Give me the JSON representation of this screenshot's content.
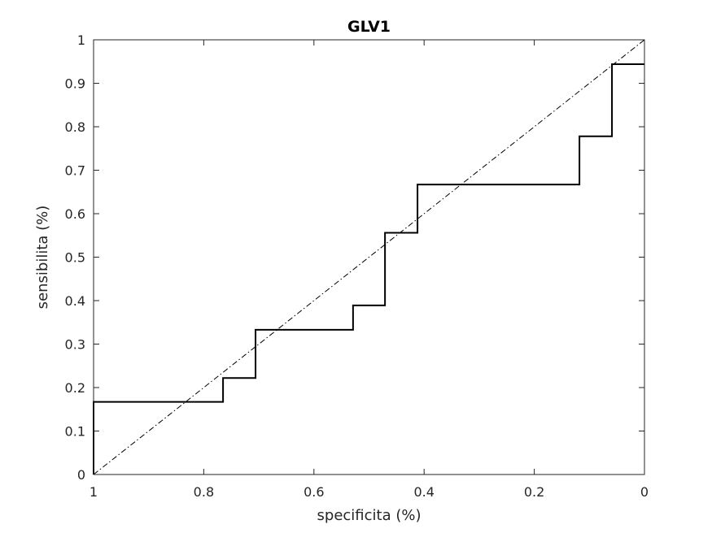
{
  "chart_data": {
    "type": "line",
    "title": "GLV1",
    "xlabel": "specificita (%)",
    "ylabel": "sensibilita (%)",
    "xlim": [
      1,
      0
    ],
    "ylim": [
      0,
      1
    ],
    "x_reversed": true,
    "x_ticks": [
      1,
      0.8,
      0.6,
      0.4,
      0.2,
      0
    ],
    "x_tick_labels": [
      "1",
      "0.8",
      "0.6",
      "0.4",
      "0.2",
      "0"
    ],
    "y_ticks": [
      0,
      0.1,
      0.2,
      0.3,
      0.4,
      0.5,
      0.6,
      0.7,
      0.8,
      0.9,
      1
    ],
    "y_tick_labels": [
      "0",
      "0.1",
      "0.2",
      "0.3",
      "0.4",
      "0.5",
      "0.6",
      "0.7",
      "0.8",
      "0.9",
      "1"
    ],
    "grid": false,
    "series": [
      {
        "style": "solid-step",
        "color": "#000000",
        "x": [
          1,
          1,
          0.765,
          0.765,
          0.706,
          0.706,
          0.529,
          0.529,
          0.471,
          0.471,
          0.412,
          0.412,
          0.118,
          0.118,
          0.059,
          0.059,
          0
        ],
        "y": [
          0,
          0.167,
          0.167,
          0.222,
          0.222,
          0.333,
          0.333,
          0.389,
          0.389,
          0.556,
          0.556,
          0.667,
          0.667,
          0.778,
          0.778,
          0.944,
          0.944
        ]
      },
      {
        "style": "dash-dot",
        "color": "#000000",
        "x": [
          1,
          0
        ],
        "y": [
          0,
          1
        ]
      }
    ]
  }
}
